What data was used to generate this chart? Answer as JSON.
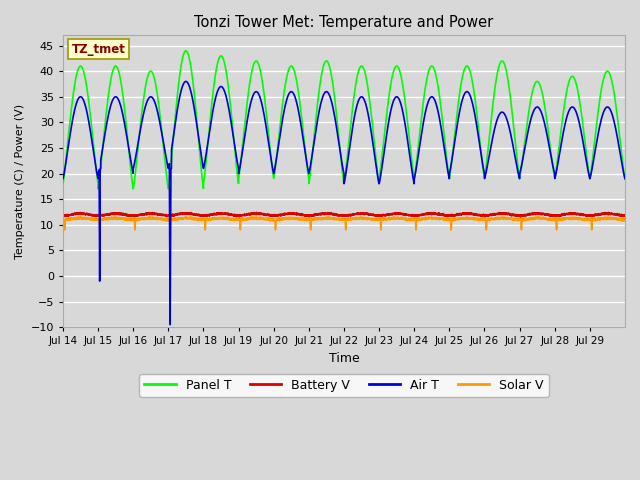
{
  "title": "Tonzi Tower Met: Temperature and Power",
  "xlabel": "Time",
  "ylabel": "Temperature (C) / Power (V)",
  "ylim": [
    -10,
    47
  ],
  "yticks": [
    -10,
    -5,
    0,
    5,
    10,
    15,
    20,
    25,
    30,
    35,
    40,
    45
  ],
  "plot_bg_color": "#d8d8d8",
  "annotation_text": "TZ_tmet",
  "annotation_bg": "#ffffcc",
  "annotation_border": "#999900",
  "series": {
    "panel_t": {
      "color": "#00ff00",
      "label": "Panel T",
      "linewidth": 1.2
    },
    "battery_v": {
      "color": "#dd0000",
      "label": "Battery V",
      "linewidth": 1.2
    },
    "air_t": {
      "color": "#0000dd",
      "label": "Air T",
      "linewidth": 1.2
    },
    "solar_v": {
      "color": "#ff9900",
      "label": "Solar V",
      "linewidth": 1.2
    }
  },
  "xtick_labels": [
    "Jul 14",
    "Jul 15",
    "Jul 16",
    "Jul 17",
    "Jul 18",
    "Jul 19",
    "Jul 20",
    "Jul 21",
    "Jul 22",
    "Jul 23",
    "Jul 24",
    "Jul 25",
    "Jul 26",
    "Jul 27",
    "Jul 28",
    "Jul 29"
  ]
}
